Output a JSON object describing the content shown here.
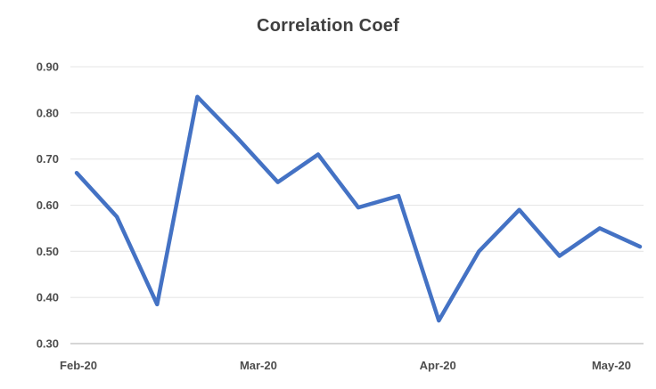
{
  "chart_data": {
    "type": "line",
    "title": "Correlation Coef",
    "xlabel": "",
    "ylabel": "",
    "ylim": [
      0.3,
      0.9
    ],
    "y_tick_step": 0.1,
    "y_tick_labels": [
      "0.90",
      "0.80",
      "0.70",
      "0.60",
      "0.50",
      "0.40",
      "0.30"
    ],
    "x_tick_labels": [
      "Feb-20",
      "Mar-20",
      "Apr-20",
      "May-20"
    ],
    "grid": "horizontal-only",
    "legend": "none",
    "series": [
      {
        "name": "Correlation Coef",
        "values": [
          0.67,
          0.575,
          0.385,
          0.835,
          0.745,
          0.65,
          0.71,
          0.595,
          0.62,
          0.35,
          0.5,
          0.59,
          0.49,
          0.55,
          0.51
        ]
      }
    ],
    "colors": {
      "line": "#4472C4",
      "title_text": "#3F3F3F",
      "tick_text": "#4D4D4D",
      "gridline": "#E6E6E6",
      "axis_line": "#C8C8C8",
      "background": "#FFFFFF"
    }
  }
}
